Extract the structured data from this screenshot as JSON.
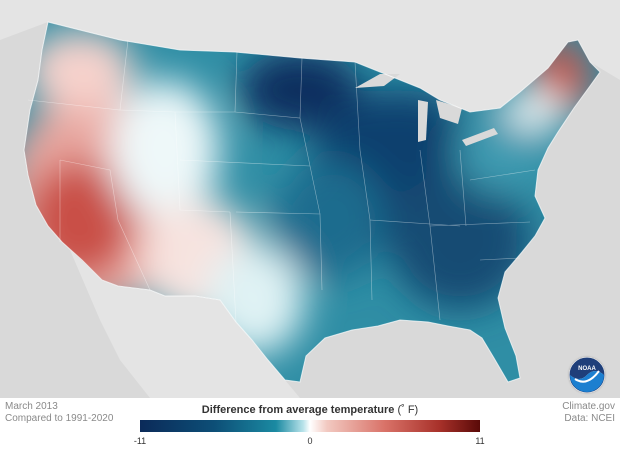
{
  "map": {
    "caption_period": "March 2013",
    "caption_baseline": "Compared to 1991-2020",
    "source_site": "Climate.gov",
    "source_data": "Data: NCEI",
    "logo_text": "NOAA"
  },
  "legend": {
    "title": "Difference from average temperature",
    "unit": "(˚ F)",
    "min": -11,
    "mid": 0,
    "max": 11,
    "min_label": "-11",
    "mid_label": "0",
    "max_label": "11",
    "colors": {
      "cold": "#0b2a59",
      "neutral": "#ffffff",
      "warm": "#5a0a08"
    }
  },
  "regions": {
    "west_coast_southwest": "warm",
    "northern_plains_midwest_southeast": "cold",
    "maine": "warm",
    "mountain_west": "near-normal"
  }
}
